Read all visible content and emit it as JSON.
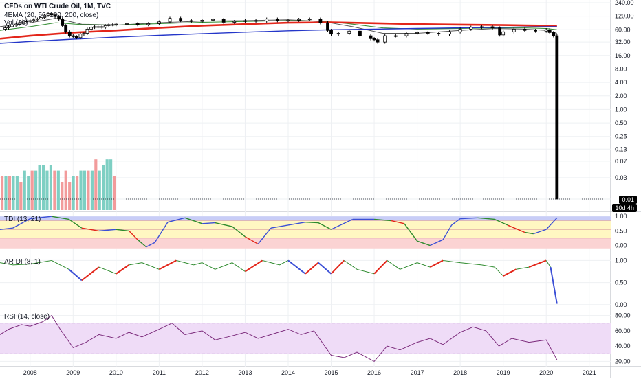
{
  "header": {
    "title": "CFDs on WTI Crude Oil, 1M, TVC",
    "ema_legend": "4EMA (20, 50, 100, 200, close)",
    "vol_legend": "Vol (20)"
  },
  "price_tags": {
    "last": "0.01",
    "countdown": "10d 4h"
  },
  "colors": {
    "ema_red": "#e3261a",
    "ema_blue": "#2436c9",
    "ema_green": "#2d8a2d",
    "ema_gray": "#555555",
    "vol_up": "#7ecfc3",
    "vol_down": "#f29b9b",
    "tdi_band": "#c8cdf7",
    "tdi_mid": "#fff7c2",
    "tdi_low": "#fbd3d3",
    "rsi_band": "#efdcf7",
    "rsi_line": "#7b2a7b",
    "candle": "#000000"
  },
  "chart_data": [
    {
      "type": "candlestick",
      "title": "CFDs on WTI Crude Oil, 1M, TVC",
      "scale": "log",
      "y_ticks": [
        240,
        120,
        60,
        32,
        16,
        8,
        4,
        2,
        1,
        0.5,
        0.25,
        0.13,
        0.07,
        0.03,
        0.01
      ],
      "y_tick_labels": [
        "240.00",
        "120.00",
        "60.00",
        "32.00",
        "16.00",
        "8.00",
        "4.00",
        "2.00",
        "1.00",
        "0.50",
        "0.25",
        "0.13",
        "0.07",
        "0.03",
        "0.01"
      ],
      "x_range": [
        2007.3,
        2021.5
      ],
      "x_ticks": [
        2008,
        2009,
        2010,
        2011,
        2012,
        2013,
        2014,
        2015,
        2016,
        2017,
        2018,
        2019,
        2020,
        2021
      ],
      "x_tick_labels": [
        "2008",
        "2009",
        "2010",
        "2011",
        "2012",
        "2013",
        "2014",
        "2015",
        "2016",
        "2017",
        "2018",
        "2019",
        "2020",
        "2021"
      ],
      "last_value": 0.01,
      "close_series": {
        "x": [
          2007.33,
          2007.42,
          2007.5,
          2007.58,
          2007.67,
          2007.75,
          2007.83,
          2007.92,
          2008.0,
          2008.08,
          2008.17,
          2008.25,
          2008.33,
          2008.42,
          2008.5,
          2008.58,
          2008.67,
          2008.75,
          2008.83,
          2008.92,
          2009.0,
          2009.08,
          2009.17,
          2009.25,
          2009.33,
          2009.42,
          2009.5,
          2009.58,
          2009.67,
          2009.75,
          2009.83,
          2009.92,
          2010.0,
          2010.25,
          2010.5,
          2010.75,
          2011.0,
          2011.25,
          2011.5,
          2011.75,
          2012.0,
          2012.25,
          2012.5,
          2012.75,
          2013.0,
          2013.25,
          2013.5,
          2013.75,
          2014.0,
          2014.25,
          2014.5,
          2014.75,
          2014.92,
          2015.0,
          2015.17,
          2015.42,
          2015.67,
          2015.92,
          2016.0,
          2016.08,
          2016.25,
          2016.5,
          2016.75,
          2017.0,
          2017.25,
          2017.5,
          2017.75,
          2018.0,
          2018.25,
          2018.5,
          2018.75,
          2018.92,
          2019.0,
          2019.25,
          2019.5,
          2019.75,
          2020.0,
          2020.08,
          2020.17,
          2020.25
        ],
        "y": [
          62,
          66,
          70,
          76,
          80,
          86,
          94,
          92,
          96,
          100,
          104,
          112,
          126,
          138,
          128,
          118,
          104,
          74,
          54,
          44,
          42,
          40,
          48,
          50,
          62,
          68,
          70,
          70,
          68,
          74,
          78,
          78,
          80,
          82,
          78,
          82,
          90,
          108,
          96,
          92,
          98,
          102,
          88,
          92,
          96,
          94,
          104,
          96,
          98,
          102,
          104,
          86,
          58,
          48,
          50,
          56,
          44,
          38,
          36,
          32,
          44,
          44,
          50,
          52,
          50,
          48,
          54,
          62,
          68,
          70,
          66,
          46,
          54,
          62,
          58,
          56,
          60,
          52,
          44,
          0.01
        ]
      },
      "ema": [
        {
          "name": "EMA 20",
          "color": "#555555",
          "x": [
            2007.3,
            2008.0,
            2008.6,
            2009.2,
            2010.0,
            2011.0,
            2012.0,
            2013.0,
            2014.0,
            2014.8,
            2015.5,
            2016.2,
            2017.0,
            2018.0,
            2018.8,
            2019.5,
            2020.0,
            2020.25
          ],
          "y": [
            70,
            86,
            108,
            80,
            76,
            86,
            94,
            96,
            100,
            92,
            70,
            50,
            50,
            58,
            64,
            62,
            58,
            50
          ]
        },
        {
          "name": "EMA 50",
          "color": "#2d8a2d",
          "x": [
            2007.3,
            2008.0,
            2008.6,
            2009.2,
            2010.0,
            2011.0,
            2012.0,
            2013.0,
            2014.0,
            2014.8,
            2015.5,
            2016.2,
            2017.0,
            2018.0,
            2018.8,
            2019.5,
            2020.0,
            2020.25
          ],
          "y": [
            58,
            70,
            86,
            78,
            76,
            82,
            88,
            92,
            96,
            94,
            80,
            66,
            62,
            64,
            66,
            66,
            64,
            60
          ]
        },
        {
          "name": "EMA 100",
          "color": "#e3261a",
          "x": [
            2007.3,
            2008.0,
            2009.0,
            2010.0,
            2011.0,
            2012.0,
            2013.0,
            2014.0,
            2015.0,
            2016.0,
            2017.0,
            2018.0,
            2019.0,
            2020.0,
            2020.25
          ],
          "y": [
            38,
            44,
            52,
            58,
            66,
            74,
            80,
            86,
            88,
            84,
            80,
            78,
            76,
            74,
            72
          ]
        },
        {
          "name": "EMA 200",
          "color": "#2436c9",
          "x": [
            2007.3,
            2008.0,
            2009.0,
            2010.0,
            2011.0,
            2012.0,
            2013.0,
            2014.0,
            2015.0,
            2016.0,
            2017.0,
            2018.0,
            2019.0,
            2020.0,
            2020.25
          ],
          "y": [
            30,
            33,
            37,
            41,
            45,
            49,
            53,
            57,
            60,
            62,
            64,
            66,
            68,
            70,
            70
          ]
        }
      ]
    },
    {
      "type": "bar",
      "title": "Vol (20)",
      "values": [
        6,
        6,
        6,
        6,
        6,
        5,
        7,
        6,
        7,
        7,
        8,
        8,
        7,
        8,
        7,
        7,
        5,
        7,
        5,
        6,
        6,
        7,
        7,
        7,
        7,
        9,
        7,
        8,
        9,
        9,
        6
      ],
      "directions": [
        "down",
        "up",
        "down",
        "up",
        "up",
        "down",
        "up",
        "up",
        "down",
        "up",
        "up",
        "up",
        "up",
        "up",
        "down",
        "up",
        "down",
        "down",
        "down",
        "up",
        "down",
        "up",
        "up",
        "down",
        "up",
        "down",
        "up",
        "up",
        "up",
        "up",
        "down"
      ]
    },
    {
      "type": "line",
      "title": "TDI (13, 21)",
      "y_ticks": [
        1.0,
        0.5,
        0.0
      ],
      "y_tick_labels": [
        "1.00",
        "0.50",
        "0.00"
      ],
      "bands": [
        0.85,
        0.55,
        0.25
      ],
      "x": [
        2007.3,
        2007.6,
        2008.0,
        2008.5,
        2008.9,
        2009.2,
        2009.6,
        2010.0,
        2010.3,
        2010.5,
        2010.7,
        2010.9,
        2011.2,
        2011.6,
        2012.0,
        2012.3,
        2012.7,
        2013.0,
        2013.3,
        2013.6,
        2014.0,
        2014.4,
        2014.7,
        2015.0,
        2015.5,
        2016.0,
        2016.4,
        2016.7,
        2017.0,
        2017.3,
        2017.6,
        2017.8,
        2018.0,
        2018.4,
        2018.8,
        2019.1,
        2019.5,
        2019.7,
        2020.0,
        2020.25
      ],
      "y": [
        0.55,
        0.6,
        0.92,
        1.0,
        0.9,
        0.6,
        0.5,
        0.55,
        0.5,
        0.2,
        -0.05,
        0.1,
        0.8,
        0.95,
        0.75,
        0.78,
        0.65,
        0.3,
        0.05,
        0.6,
        0.7,
        0.8,
        0.78,
        0.55,
        0.9,
        0.9,
        0.85,
        0.75,
        0.15,
        0.0,
        0.2,
        0.7,
        0.92,
        0.95,
        0.9,
        0.7,
        0.45,
        0.4,
        0.55,
        0.95
      ]
    },
    {
      "type": "line",
      "title": "AR DI (8, 1)",
      "y_ticks": [
        1.0,
        0.5,
        0.0
      ],
      "y_tick_labels": [
        "1.00",
        "0.50",
        "0.00"
      ],
      "x": [
        2007.3,
        2007.6,
        2008.0,
        2008.5,
        2008.9,
        2009.2,
        2009.6,
        2010.0,
        2010.3,
        2010.6,
        2011.0,
        2011.4,
        2011.8,
        2012.0,
        2012.3,
        2012.7,
        2013.0,
        2013.4,
        2013.8,
        2014.0,
        2014.4,
        2014.7,
        2015.0,
        2015.3,
        2015.6,
        2016.0,
        2016.3,
        2016.6,
        2017.0,
        2017.3,
        2017.6,
        2018.0,
        2018.5,
        2018.8,
        2019.0,
        2019.3,
        2019.6,
        2020.0,
        2020.1,
        2020.25
      ],
      "y": [
        0.95,
        0.9,
        0.92,
        1.0,
        0.8,
        0.55,
        0.85,
        0.7,
        0.9,
        0.95,
        0.8,
        1.0,
        0.9,
        0.95,
        0.8,
        0.95,
        0.75,
        1.0,
        0.9,
        1.0,
        0.7,
        0.95,
        0.7,
        1.0,
        0.8,
        0.7,
        1.0,
        0.8,
        0.95,
        0.85,
        1.0,
        0.95,
        0.9,
        0.85,
        0.65,
        0.8,
        0.85,
        1.0,
        0.85,
        0.02
      ]
    },
    {
      "type": "line",
      "title": "RSI (14, close)",
      "y_ticks": [
        80,
        60,
        40,
        20
      ],
      "y_tick_labels": [
        "80.00",
        "60.00",
        "40.00",
        "20.00"
      ],
      "band": [
        30,
        70
      ],
      "x": [
        2007.3,
        2007.5,
        2007.8,
        2008.0,
        2008.3,
        2008.5,
        2008.7,
        2009.0,
        2009.3,
        2009.6,
        2010.0,
        2010.3,
        2010.6,
        2011.0,
        2011.3,
        2011.6,
        2012.0,
        2012.3,
        2012.6,
        2013.0,
        2013.3,
        2013.6,
        2014.0,
        2014.3,
        2014.6,
        2015.0,
        2015.3,
        2015.6,
        2016.0,
        2016.3,
        2016.6,
        2017.0,
        2017.3,
        2017.6,
        2018.0,
        2018.3,
        2018.6,
        2018.9,
        2019.2,
        2019.6,
        2020.0,
        2020.25
      ],
      "y": [
        55,
        62,
        68,
        66,
        72,
        80,
        62,
        38,
        45,
        55,
        50,
        58,
        52,
        62,
        70,
        55,
        60,
        48,
        52,
        58,
        50,
        55,
        62,
        55,
        60,
        28,
        25,
        32,
        20,
        40,
        35,
        45,
        50,
        42,
        58,
        65,
        60,
        40,
        50,
        45,
        48,
        22
      ]
    }
  ]
}
